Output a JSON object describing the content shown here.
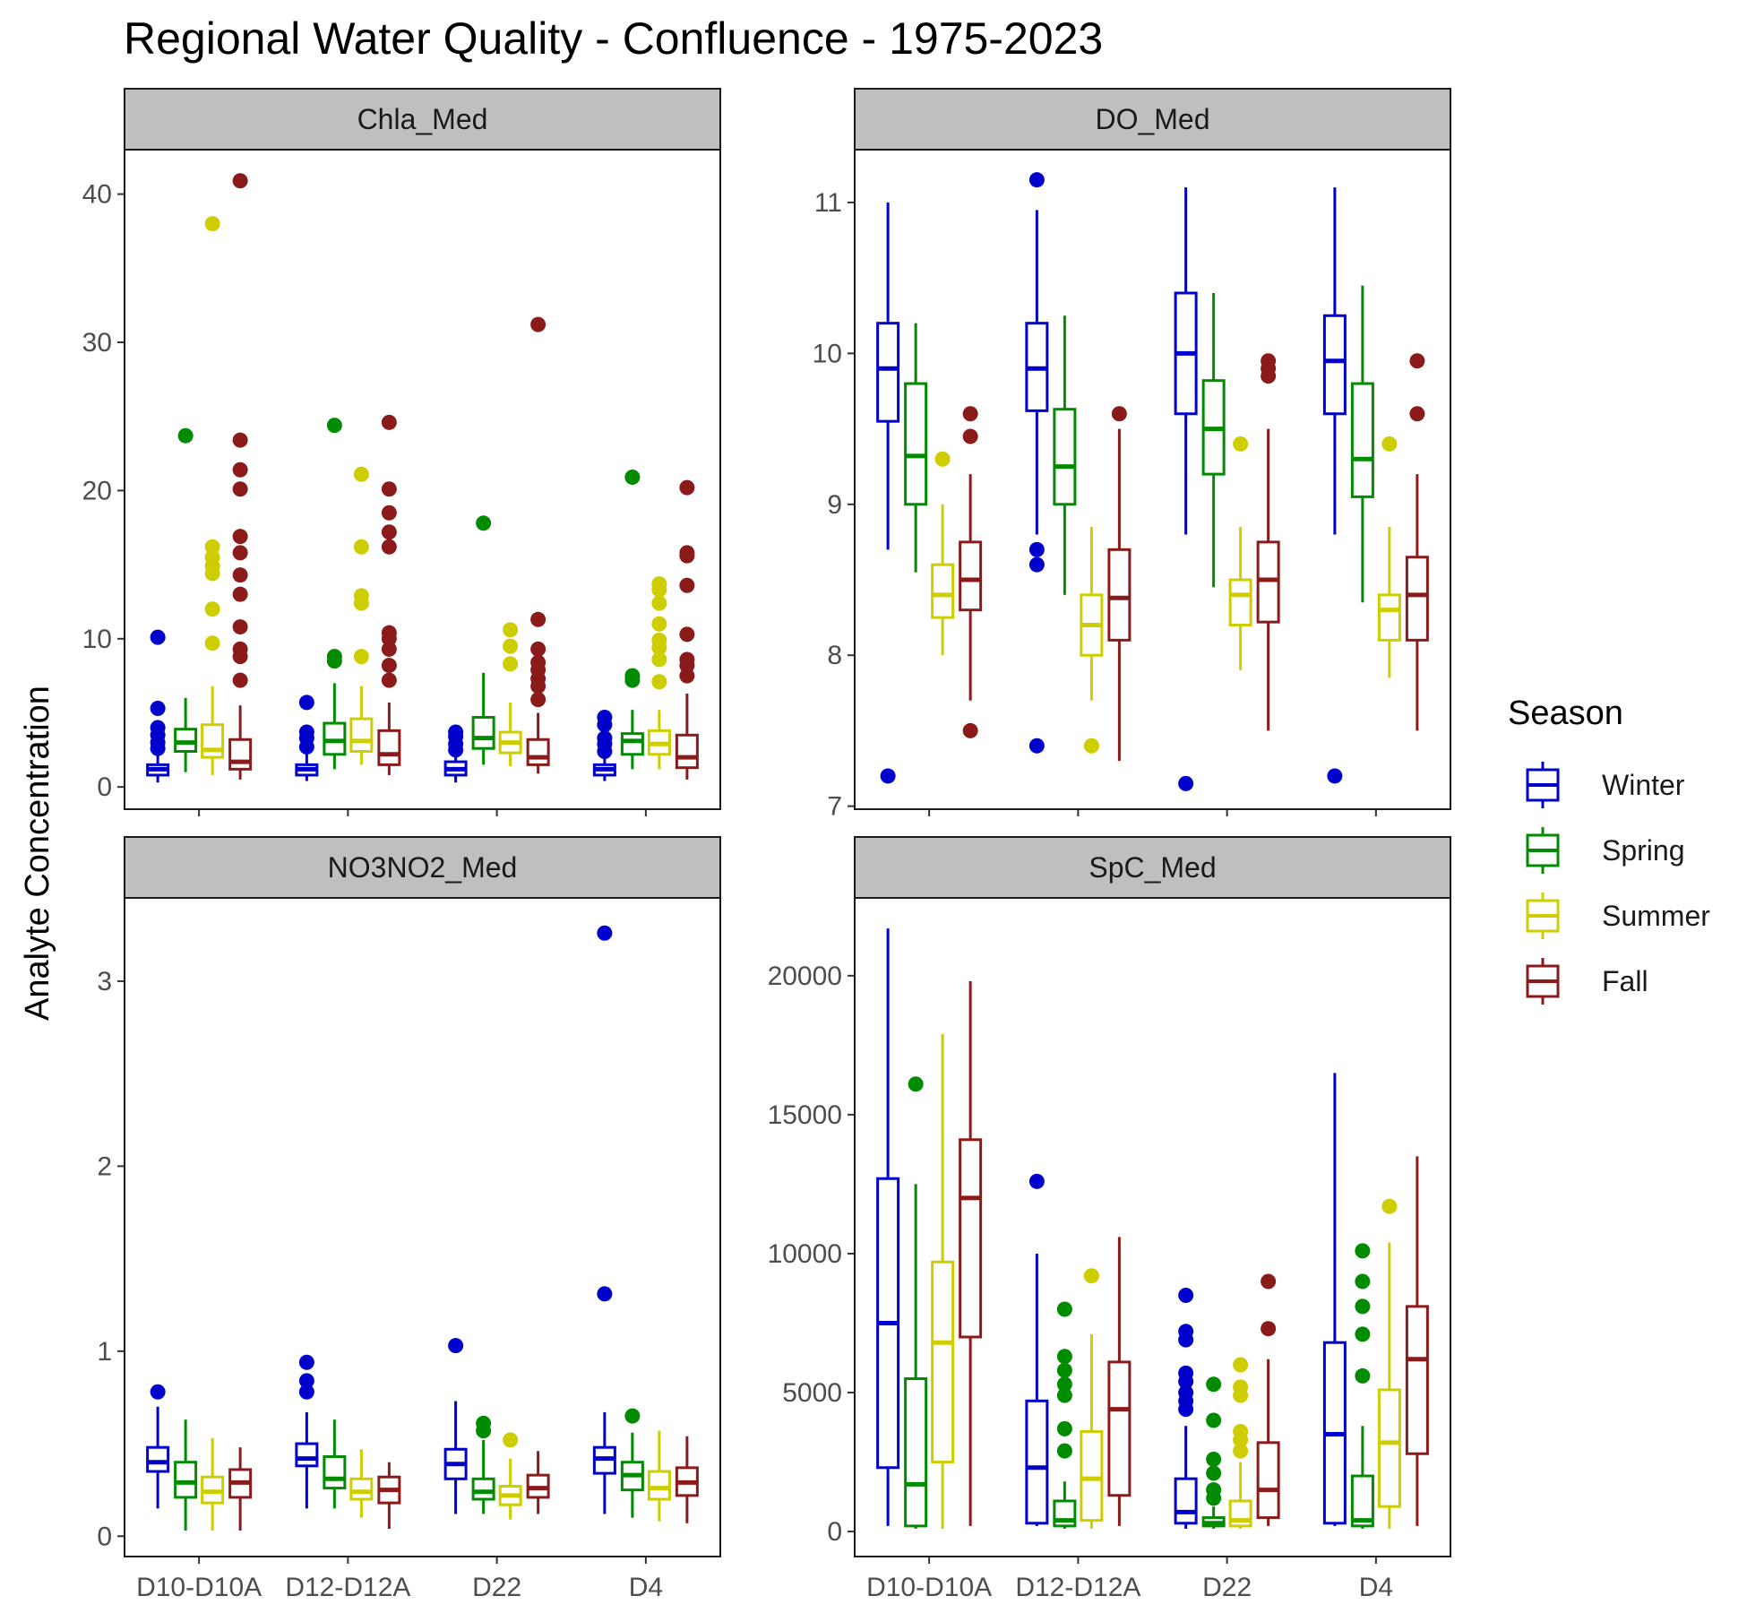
{
  "title": "Regional Water Quality - Confluence - 1975-2023",
  "y_axis_label": "Analyte Concentration",
  "legend": {
    "title": "Season",
    "items": [
      {
        "name": "Winter",
        "color": "#0000CD"
      },
      {
        "name": "Spring",
        "color": "#008B00"
      },
      {
        "name": "Summer",
        "color": "#CDCD00"
      },
      {
        "name": "Fall",
        "color": "#8B1A1A"
      }
    ]
  },
  "chart_data": [
    {
      "type": "boxplot",
      "panel": "Chla_Med",
      "categories": [
        "D10-D10A",
        "D12-D12A",
        "D22",
        "D4"
      ],
      "ylim": [
        -1.5,
        43
      ],
      "yticks": [
        0,
        10,
        20,
        30,
        40
      ],
      "grid": false,
      "series": [
        {
          "name": "Winter",
          "boxes": [
            {
              "min": 0.3,
              "q1": 0.8,
              "median": 1.2,
              "q3": 1.5,
              "max": 2.1,
              "outliers": [
                2.6,
                3.0,
                3.5,
                4.0,
                5.3,
                10.1
              ]
            },
            {
              "min": 0.4,
              "q1": 0.8,
              "median": 1.2,
              "q3": 1.5,
              "max": 2.2,
              "outliers": [
                2.7,
                3.3,
                3.7,
                5.7
              ]
            },
            {
              "min": 0.3,
              "q1": 0.8,
              "median": 1.2,
              "q3": 1.7,
              "max": 2.2,
              "outliers": [
                2.5,
                2.9,
                3.4,
                3.7
              ]
            },
            {
              "min": 0.4,
              "q1": 0.8,
              "median": 1.2,
              "q3": 1.5,
              "max": 2.0,
              "outliers": [
                2.4,
                2.9,
                3.3,
                4.2,
                4.7
              ]
            }
          ]
        },
        {
          "name": "Spring",
          "boxes": [
            {
              "min": 1.0,
              "q1": 2.4,
              "median": 3.0,
              "q3": 3.9,
              "max": 6.0,
              "outliers": [
                23.7
              ]
            },
            {
              "min": 1.2,
              "q1": 2.2,
              "median": 3.1,
              "q3": 4.3,
              "max": 7.0,
              "outliers": [
                8.5,
                8.8,
                24.4
              ]
            },
            {
              "min": 1.5,
              "q1": 2.6,
              "median": 3.3,
              "q3": 4.7,
              "max": 7.7,
              "outliers": [
                17.8
              ]
            },
            {
              "min": 1.2,
              "q1": 2.2,
              "median": 3.1,
              "q3": 3.6,
              "max": 5.2,
              "outliers": [
                7.2,
                7.5,
                20.9
              ]
            }
          ]
        },
        {
          "name": "Summer",
          "boxes": [
            {
              "min": 0.8,
              "q1": 2.0,
              "median": 2.5,
              "q3": 4.2,
              "max": 6.8,
              "outliers": [
                9.7,
                12.0,
                14.4,
                14.9,
                15.5,
                16.2,
                38.0
              ]
            },
            {
              "min": 1.5,
              "q1": 2.4,
              "median": 3.1,
              "q3": 4.6,
              "max": 6.8,
              "outliers": [
                8.8,
                12.4,
                12.9,
                16.2,
                21.1
              ]
            },
            {
              "min": 1.4,
              "q1": 2.3,
              "median": 3.0,
              "q3": 3.7,
              "max": 5.7,
              "outliers": [
                8.3,
                9.5,
                10.6
              ]
            },
            {
              "min": 1.2,
              "q1": 2.2,
              "median": 2.9,
              "q3": 3.8,
              "max": 5.2,
              "outliers": [
                7.1,
                8.6,
                9.4,
                9.9,
                11.0,
                12.4,
                13.3,
                13.7
              ]
            }
          ]
        },
        {
          "name": "Fall",
          "boxes": [
            {
              "min": 0.5,
              "q1": 1.2,
              "median": 1.7,
              "q3": 3.2,
              "max": 5.5,
              "outliers": [
                7.2,
                8.8,
                9.3,
                10.8,
                13.0,
                14.3,
                15.8,
                16.9,
                20.1,
                21.4,
                23.4,
                40.9
              ]
            },
            {
              "min": 0.8,
              "q1": 1.5,
              "median": 2.2,
              "q3": 3.8,
              "max": 5.7,
              "outliers": [
                7.2,
                8.2,
                9.3,
                10.0,
                10.4,
                16.2,
                17.2,
                18.5,
                20.1,
                24.6
              ]
            },
            {
              "min": 0.9,
              "q1": 1.5,
              "median": 2.0,
              "q3": 3.2,
              "max": 5.0,
              "outliers": [
                5.9,
                6.8,
                7.3,
                7.9,
                8.4,
                9.3,
                11.3,
                31.2
              ]
            },
            {
              "min": 0.5,
              "q1": 1.3,
              "median": 2.0,
              "q3": 3.5,
              "max": 6.3,
              "outliers": [
                7.5,
                8.2,
                8.6,
                10.3,
                13.6,
                15.6,
                15.8,
                20.2
              ]
            }
          ]
        }
      ]
    },
    {
      "type": "boxplot",
      "panel": "DO_Med",
      "categories": [
        "D10-D10A",
        "D12-D12A",
        "D22",
        "D4"
      ],
      "ylim": [
        6.98,
        11.35
      ],
      "yticks": [
        7,
        8,
        9,
        10,
        11
      ],
      "grid": false,
      "series": [
        {
          "name": "Winter",
          "boxes": [
            {
              "min": 8.7,
              "q1": 9.55,
              "median": 9.9,
              "q3": 10.2,
              "max": 11.0,
              "outliers": [
                7.2
              ]
            },
            {
              "min": 8.8,
              "q1": 9.62,
              "median": 9.9,
              "q3": 10.2,
              "max": 10.95,
              "outliers": [
                7.4,
                8.6,
                8.7,
                11.15
              ]
            },
            {
              "min": 8.8,
              "q1": 9.6,
              "median": 10.0,
              "q3": 10.4,
              "max": 11.1,
              "outliers": [
                7.15
              ]
            },
            {
              "min": 8.8,
              "q1": 9.6,
              "median": 9.95,
              "q3": 10.25,
              "max": 11.1,
              "outliers": [
                7.2
              ]
            }
          ]
        },
        {
          "name": "Spring",
          "boxes": [
            {
              "min": 8.55,
              "q1": 9.0,
              "median": 9.32,
              "q3": 9.8,
              "max": 10.2,
              "outliers": []
            },
            {
              "min": 8.4,
              "q1": 9.0,
              "median": 9.25,
              "q3": 9.63,
              "max": 10.25,
              "outliers": []
            },
            {
              "min": 8.45,
              "q1": 9.2,
              "median": 9.5,
              "q3": 9.82,
              "max": 10.4,
              "outliers": []
            },
            {
              "min": 8.35,
              "q1": 9.05,
              "median": 9.3,
              "q3": 9.8,
              "max": 10.45,
              "outliers": []
            }
          ]
        },
        {
          "name": "Summer",
          "boxes": [
            {
              "min": 8.0,
              "q1": 8.25,
              "median": 8.4,
              "q3": 8.6,
              "max": 9.0,
              "outliers": [
                9.3
              ]
            },
            {
              "min": 7.7,
              "q1": 8.0,
              "median": 8.2,
              "q3": 8.4,
              "max": 8.85,
              "outliers": [
                7.4
              ]
            },
            {
              "min": 7.9,
              "q1": 8.2,
              "median": 8.4,
              "q3": 8.5,
              "max": 8.85,
              "outliers": [
                9.4
              ]
            },
            {
              "min": 7.85,
              "q1": 8.1,
              "median": 8.3,
              "q3": 8.4,
              "max": 8.85,
              "outliers": [
                9.4
              ]
            }
          ]
        },
        {
          "name": "Fall",
          "boxes": [
            {
              "min": 7.7,
              "q1": 8.3,
              "median": 8.5,
              "q3": 8.75,
              "max": 9.2,
              "outliers": [
                7.5,
                9.45,
                9.6
              ]
            },
            {
              "min": 7.3,
              "q1": 8.1,
              "median": 8.38,
              "q3": 8.7,
              "max": 9.5,
              "outliers": [
                9.6
              ]
            },
            {
              "min": 7.5,
              "q1": 8.22,
              "median": 8.5,
              "q3": 8.75,
              "max": 9.5,
              "outliers": [
                9.85,
                9.9,
                9.95
              ]
            },
            {
              "min": 7.5,
              "q1": 8.1,
              "median": 8.4,
              "q3": 8.65,
              "max": 9.2,
              "outliers": [
                9.6,
                9.95
              ]
            }
          ]
        }
      ]
    },
    {
      "type": "boxplot",
      "panel": "NO3NO2_Med",
      "categories": [
        "D10-D10A",
        "D12-D12A",
        "D22",
        "D4"
      ],
      "ylim": [
        -0.11,
        3.45
      ],
      "yticks": [
        0,
        1,
        2,
        3
      ],
      "grid": false,
      "series": [
        {
          "name": "Winter",
          "boxes": [
            {
              "min": 0.15,
              "q1": 0.35,
              "median": 0.4,
              "q3": 0.48,
              "max": 0.7,
              "outliers": [
                0.78
              ]
            },
            {
              "min": 0.15,
              "q1": 0.38,
              "median": 0.42,
              "q3": 0.5,
              "max": 0.67,
              "outliers": [
                0.78,
                0.84,
                0.94
              ]
            },
            {
              "min": 0.12,
              "q1": 0.31,
              "median": 0.39,
              "q3": 0.47,
              "max": 0.73,
              "outliers": [
                1.03
              ]
            },
            {
              "min": 0.12,
              "q1": 0.34,
              "median": 0.42,
              "q3": 0.48,
              "max": 0.67,
              "outliers": [
                1.31,
                3.26
              ]
            }
          ]
        },
        {
          "name": "Spring",
          "boxes": [
            {
              "min": 0.03,
              "q1": 0.21,
              "median": 0.29,
              "q3": 0.4,
              "max": 0.63,
              "outliers": []
            },
            {
              "min": 0.15,
              "q1": 0.26,
              "median": 0.31,
              "q3": 0.43,
              "max": 0.63,
              "outliers": []
            },
            {
              "min": 0.12,
              "q1": 0.2,
              "median": 0.24,
              "q3": 0.31,
              "max": 0.52,
              "outliers": [
                0.57,
                0.61
              ]
            },
            {
              "min": 0.1,
              "q1": 0.25,
              "median": 0.33,
              "q3": 0.4,
              "max": 0.56,
              "outliers": [
                0.65
              ]
            }
          ]
        },
        {
          "name": "Summer",
          "boxes": [
            {
              "min": 0.03,
              "q1": 0.18,
              "median": 0.24,
              "q3": 0.32,
              "max": 0.53,
              "outliers": []
            },
            {
              "min": 0.1,
              "q1": 0.2,
              "median": 0.24,
              "q3": 0.31,
              "max": 0.47,
              "outliers": []
            },
            {
              "min": 0.09,
              "q1": 0.17,
              "median": 0.22,
              "q3": 0.27,
              "max": 0.42,
              "outliers": [
                0.52
              ]
            },
            {
              "min": 0.08,
              "q1": 0.2,
              "median": 0.26,
              "q3": 0.35,
              "max": 0.57,
              "outliers": []
            }
          ]
        },
        {
          "name": "Fall",
          "boxes": [
            {
              "min": 0.03,
              "q1": 0.21,
              "median": 0.29,
              "q3": 0.36,
              "max": 0.48,
              "outliers": []
            },
            {
              "min": 0.04,
              "q1": 0.18,
              "median": 0.25,
              "q3": 0.32,
              "max": 0.4,
              "outliers": []
            },
            {
              "min": 0.12,
              "q1": 0.21,
              "median": 0.26,
              "q3": 0.33,
              "max": 0.46,
              "outliers": []
            },
            {
              "min": 0.07,
              "q1": 0.22,
              "median": 0.29,
              "q3": 0.37,
              "max": 0.54,
              "outliers": []
            }
          ]
        }
      ]
    },
    {
      "type": "boxplot",
      "panel": "SpC_Med",
      "categories": [
        "D10-D10A",
        "D12-D12A",
        "D22",
        "D4"
      ],
      "ylim": [
        -900,
        22800
      ],
      "yticks": [
        0,
        5000,
        10000,
        15000,
        20000
      ],
      "grid": false,
      "series": [
        {
          "name": "Winter",
          "boxes": [
            {
              "min": 200,
              "q1": 2300,
              "median": 7500,
              "q3": 12700,
              "max": 21700,
              "outliers": []
            },
            {
              "min": 200,
              "q1": 300,
              "median": 2300,
              "q3": 4700,
              "max": 10000,
              "outliers": [
                12600
              ]
            },
            {
              "min": 100,
              "q1": 300,
              "median": 700,
              "q3": 1900,
              "max": 3800,
              "outliers": [
                4400,
                4700,
                5000,
                5400,
                5700,
                6900,
                7200,
                8500
              ]
            },
            {
              "min": 200,
              "q1": 300,
              "median": 3500,
              "q3": 6800,
              "max": 16500,
              "outliers": []
            }
          ]
        },
        {
          "name": "Spring",
          "boxes": [
            {
              "min": 100,
              "q1": 200,
              "median": 1700,
              "q3": 5500,
              "max": 12500,
              "outliers": [
                16100
              ]
            },
            {
              "min": 100,
              "q1": 200,
              "median": 400,
              "q3": 1100,
              "max": 1800,
              "outliers": [
                2900,
                3700,
                4900,
                5300,
                5800,
                6300,
                8000
              ]
            },
            {
              "min": 100,
              "q1": 200,
              "median": 300,
              "q3": 500,
              "max": 900,
              "outliers": [
                1200,
                1500,
                2100,
                2600,
                4000,
                5300
              ]
            },
            {
              "min": 100,
              "q1": 200,
              "median": 400,
              "q3": 2000,
              "max": 3800,
              "outliers": [
                5600,
                7100,
                8100,
                9000,
                10100
              ]
            }
          ]
        },
        {
          "name": "Summer",
          "boxes": [
            {
              "min": 100,
              "q1": 2500,
              "median": 6800,
              "q3": 9700,
              "max": 17900,
              "outliers": []
            },
            {
              "min": 100,
              "q1": 400,
              "median": 1900,
              "q3": 3600,
              "max": 7100,
              "outliers": [
                9200
              ]
            },
            {
              "min": 100,
              "q1": 200,
              "median": 400,
              "q3": 1100,
              "max": 2500,
              "outliers": [
                2900,
                3300,
                3600,
                4900,
                5200,
                6000
              ]
            },
            {
              "min": 100,
              "q1": 900,
              "median": 3200,
              "q3": 5100,
              "max": 10400,
              "outliers": [
                11700
              ]
            }
          ]
        },
        {
          "name": "Fall",
          "boxes": [
            {
              "min": 200,
              "q1": 7000,
              "median": 12000,
              "q3": 14100,
              "max": 19800,
              "outliers": []
            },
            {
              "min": 200,
              "q1": 1300,
              "median": 4400,
              "q3": 6100,
              "max": 10600,
              "outliers": []
            },
            {
              "min": 200,
              "q1": 500,
              "median": 1500,
              "q3": 3200,
              "max": 6200,
              "outliers": [
                7300,
                9000
              ]
            },
            {
              "min": 200,
              "q1": 2800,
              "median": 6200,
              "q3": 8100,
              "max": 13500,
              "outliers": []
            }
          ]
        }
      ]
    }
  ]
}
